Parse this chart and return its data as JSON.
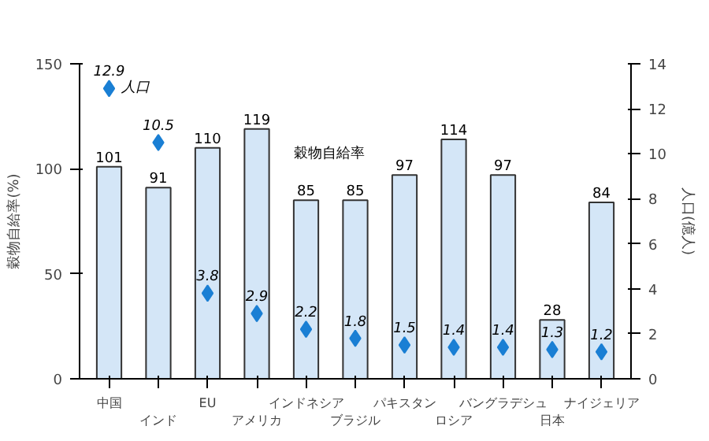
{
  "chart_data": {
    "type": "bar",
    "ylabel": "穀物自給率(%)",
    "y2label": "人口(億人)",
    "categories": [
      "中国",
      "インド",
      "EU",
      "アメリカ",
      "インドネシア",
      "ブラジル",
      "パキスタン",
      "ロシア",
      "バングラデシュ",
      "日本",
      "ナイジェリア"
    ],
    "series": [
      {
        "name": "穀物自給率",
        "color": "#d4e6f7",
        "values": [
          101,
          91,
          110,
          119,
          85,
          85,
          97,
          114,
          97,
          28,
          84
        ]
      },
      {
        "name": "人口",
        "type": "scatter",
        "axis": "y2",
        "color": "#1a7fd4",
        "marker": "diamond",
        "values": [
          12.9,
          10.5,
          3.8,
          2.9,
          2.2,
          1.8,
          1.5,
          1.4,
          1.4,
          1.3,
          1.2
        ]
      }
    ],
    "ylim": [
      0,
      150
    ],
    "yticks": [
      0,
      50,
      100,
      150
    ],
    "y2lim": [
      0,
      14
    ],
    "y2ticks": [
      0,
      2,
      4,
      6,
      8,
      10,
      12,
      14
    ],
    "data_labels": true,
    "grid": false
  }
}
